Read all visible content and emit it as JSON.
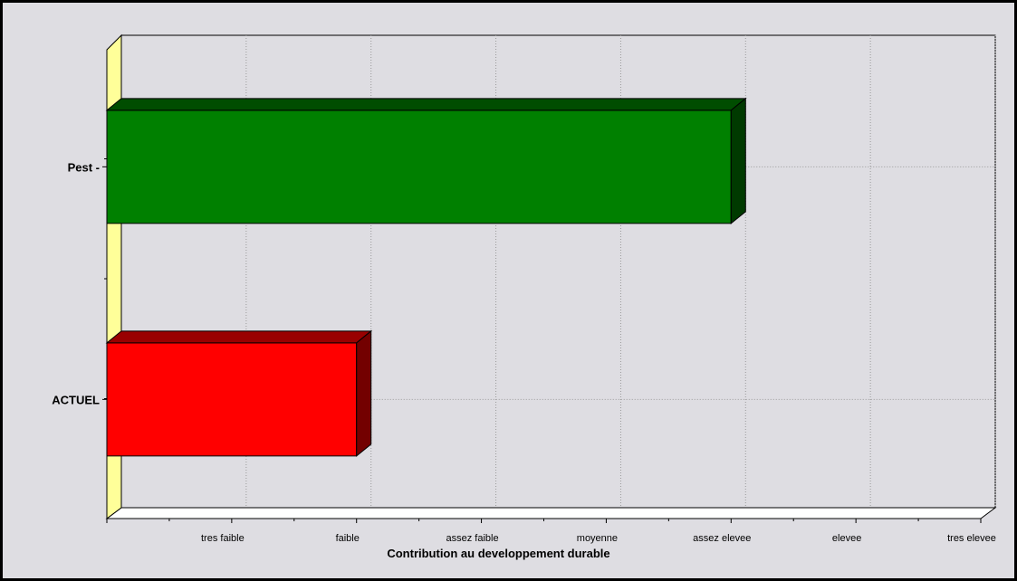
{
  "chart_data": {
    "type": "bar",
    "orientation": "horizontal",
    "three_d": true,
    "title": "",
    "xlabel": "Contribution au developpement durable",
    "ylabel": "",
    "x_ticks": [
      "",
      "tres faible",
      "faible",
      "assez faible",
      "moyenne",
      "assez elevee",
      "elevee",
      "tres elevee"
    ],
    "xlim": [
      0,
      7
    ],
    "categories": [
      "Pest -",
      "ACTUEL"
    ],
    "values": [
      5,
      2
    ],
    "bar_colors": [
      "#008000",
      "#ff0000"
    ],
    "grid": true,
    "legend": "none"
  },
  "colors": {
    "background": "#dedde2",
    "wall": "#ffff99",
    "floor": "#ffffff"
  }
}
